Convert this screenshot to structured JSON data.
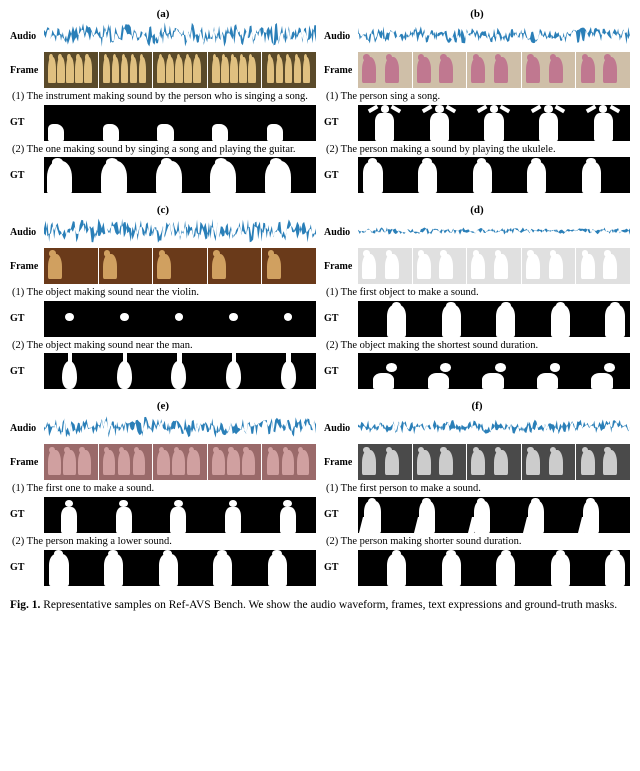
{
  "labels": {
    "audio": "Audio",
    "frame": "Frame",
    "gt": "GT"
  },
  "wave_color": "#2a7fb8",
  "blocks": [
    {
      "id": "(a)",
      "wave_density": 1.0,
      "frames": {
        "bg": "#5a4a2a",
        "fg": "#e0c080",
        "bw": false,
        "people": 5
      },
      "cap1": "(1) The instrument making sound by the person who is singing a song.",
      "gt1": {
        "type": "small-corner",
        "count": 5
      },
      "cap2": "(2) The one making sound by singing a song and playing the guitar.",
      "gt2": {
        "type": "half-person-left",
        "count": 5
      }
    },
    {
      "id": "(b)",
      "wave_density": 0.7,
      "frames": {
        "bg": "#cfbfa8",
        "fg": "#c07890",
        "bw": false,
        "people": 2
      },
      "cap1": "(1) The person sing a song.",
      "gt1": {
        "type": "person-arms-up",
        "count": 5
      },
      "cap2": "(2) The person making a sound by playing the ukulele.",
      "gt2": {
        "type": "person-left",
        "count": 5
      }
    },
    {
      "id": "(c)",
      "wave_density": 1.0,
      "frames": {
        "bg": "#6a3a1a",
        "fg": "#d0a060",
        "bw": false,
        "people": 1
      },
      "cap1": "(1) The object making sound near the  violin.",
      "gt1": {
        "type": "tiny-dot",
        "count": 5
      },
      "cap2": "(2) The object making sound near the man.",
      "gt2": {
        "type": "cello",
        "count": 5
      }
    },
    {
      "id": "(d)",
      "wave_density": 0.3,
      "frames": {
        "bg": "#e0e0e0",
        "fg": "#ffffff",
        "bw": false,
        "people": 2
      },
      "cap1": "(1) The first object to make a sound.",
      "gt1": {
        "type": "person-right",
        "count": 5
      },
      "cap2": "(2) The object making the shortest sound duration.",
      "gt2": {
        "type": "dog",
        "count": 5
      }
    },
    {
      "id": "(e)",
      "wave_density": 0.85,
      "frames": {
        "bg": "#9a6a6a",
        "fg": "#d0a0a0",
        "bw": false,
        "people": 3
      },
      "cap1": "(1) The first one to make a sound.",
      "gt1": {
        "type": "small-person",
        "count": 5
      },
      "cap2": "(2) The person making a lower sound.",
      "gt2": {
        "type": "person-left",
        "count": 5
      }
    },
    {
      "id": "(f)",
      "wave_density": 0.6,
      "frames": {
        "bg": "#4a4a4a",
        "fg": "#bababa",
        "bw": true,
        "people": 2
      },
      "cap1": "(1) The first person to make a sound.",
      "gt1": {
        "type": "person-left-walk",
        "count": 5
      },
      "cap2": "(2) The person making shorter sound duration.",
      "gt2": {
        "type": "person-right",
        "count": 5
      }
    }
  ],
  "figcaption_prefix": "Fig. 1.",
  "figcaption": "Representative samples on Ref-AVS Bench. We show the audio waveform, frames, text expressions and ground-truth masks."
}
